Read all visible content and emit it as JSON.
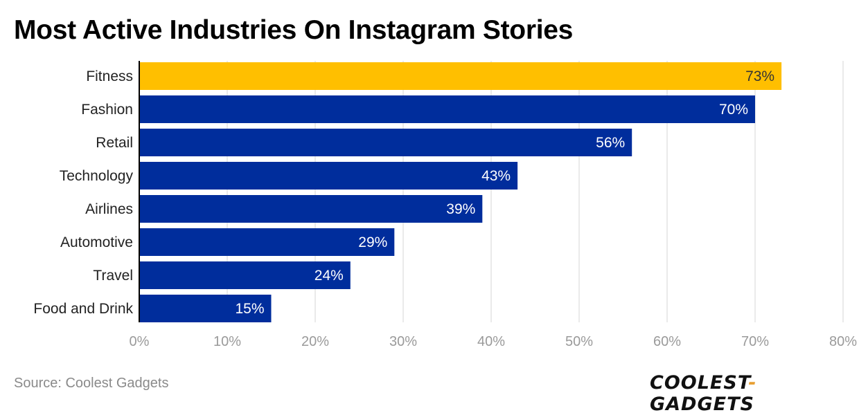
{
  "chart_data": {
    "type": "bar",
    "orientation": "horizontal",
    "title": "Most Active Industries On Instagram Stories",
    "categories": [
      "Fitness",
      "Fashion",
      "Retail",
      "Technology",
      "Airlines",
      "Automotive",
      "Travel",
      "Food and Drink"
    ],
    "values": [
      73,
      70,
      56,
      43,
      39,
      29,
      24,
      15
    ],
    "value_labels": [
      "73%",
      "70%",
      "56%",
      "43%",
      "39%",
      "29%",
      "24%",
      "15%"
    ],
    "highlight_index": 0,
    "colors": {
      "highlight": "#FFBF00",
      "bar": "#002D9C",
      "grid": "#e3e3e3",
      "tick": "#9a9a9a"
    },
    "xlim": [
      0,
      80
    ],
    "xticks": [
      0,
      10,
      20,
      30,
      40,
      50,
      60,
      70,
      80
    ],
    "xtick_labels": [
      "0%",
      "10%",
      "20%",
      "30%",
      "40%",
      "50%",
      "60%",
      "70%",
      "80%"
    ],
    "xlabel": "",
    "ylabel": "",
    "grid": true
  },
  "footer": {
    "source": "Source: Coolest Gadgets",
    "logo_left": "COOLEST",
    "logo_dash": "-",
    "logo_right": "GADGETS"
  }
}
